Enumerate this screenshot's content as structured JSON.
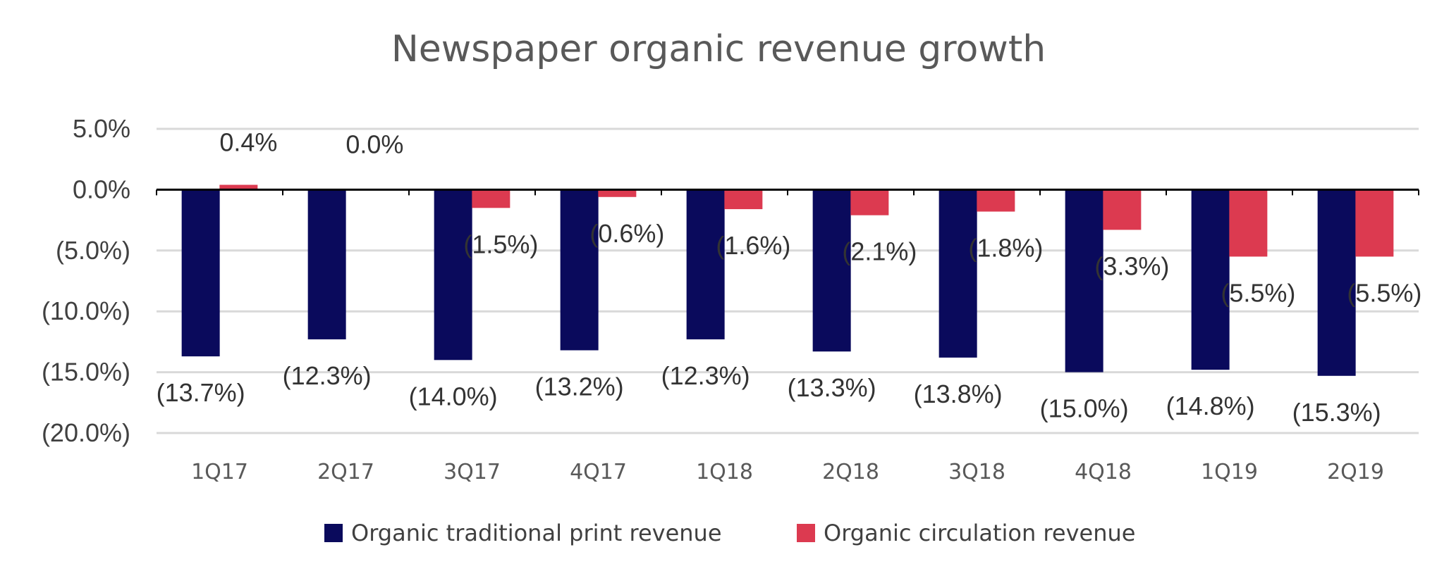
{
  "chart_data": {
    "type": "bar",
    "title": "Newspaper organic revenue growth",
    "categories": [
      "1Q17",
      "2Q17",
      "3Q17",
      "4Q17",
      "1Q18",
      "2Q18",
      "3Q18",
      "4Q18",
      "1Q19",
      "2Q19"
    ],
    "series": [
      {
        "name": "Organic traditional print revenue",
        "color": "#0a0a5c",
        "values": [
          -13.7,
          -12.3,
          -14.0,
          -13.2,
          -12.3,
          -13.3,
          -13.8,
          -15.0,
          -14.8,
          -15.3
        ],
        "labels": [
          "(13.7%)",
          "(12.3%)",
          "(14.0%)",
          "(13.2%)",
          "(12.3%)",
          "(13.3%)",
          "(13.8%)",
          "(15.0%)",
          "(14.8%)",
          "(15.3%)"
        ]
      },
      {
        "name": "Organic circulation revenue",
        "color": "#dc3a50",
        "values": [
          0.4,
          0.0,
          -1.5,
          -0.6,
          -1.6,
          -2.1,
          -1.8,
          -3.3,
          -5.5,
          -5.5
        ],
        "labels": [
          "0.4%",
          "0.0%",
          "(1.5%)",
          "(0.6%)",
          "(1.6%)",
          "(2.1%)",
          "(1.8%)",
          "(3.3%)",
          "(5.5%)",
          "(5.5%)"
        ]
      }
    ],
    "yticks": [
      5,
      0,
      -5,
      -10,
      -15,
      -20
    ],
    "ytick_labels": [
      "5.0%",
      "0.0%",
      "(5.0%)",
      "(10.0%)",
      "(15.0%)",
      "(20.0%)"
    ],
    "ylim": [
      -20,
      5
    ],
    "grid": true,
    "legend_position": "bottom"
  }
}
